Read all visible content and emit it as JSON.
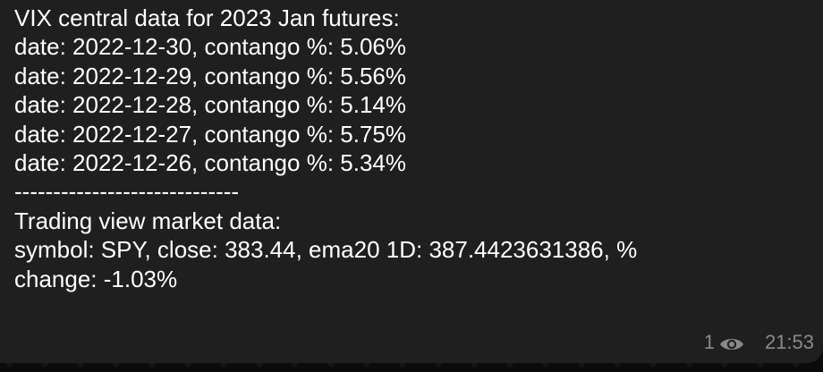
{
  "message": {
    "lines": [
      "VIX central data for 2023 Jan futures:",
      "date: 2022-12-30, contango %: 5.06%",
      "date: 2022-12-29, contango %: 5.56%",
      "date: 2022-12-28, contango %: 5.14%",
      "date: 2022-12-27, contango %: 5.75%",
      "date: 2022-12-26, contango %: 5.34%",
      "-----------------------------",
      "Trading view market data:",
      "symbol: SPY, close: 383.44, ema20 1D: 387.4423631386, %",
      "change: -1.03%"
    ]
  },
  "meta": {
    "views": "1",
    "time": "21:53",
    "icon": "eye-icon"
  },
  "colors": {
    "bubble": "#1f1f1f",
    "background": "#0b0b0b",
    "text": "#ffffff",
    "meta": "#8a8a8a"
  }
}
